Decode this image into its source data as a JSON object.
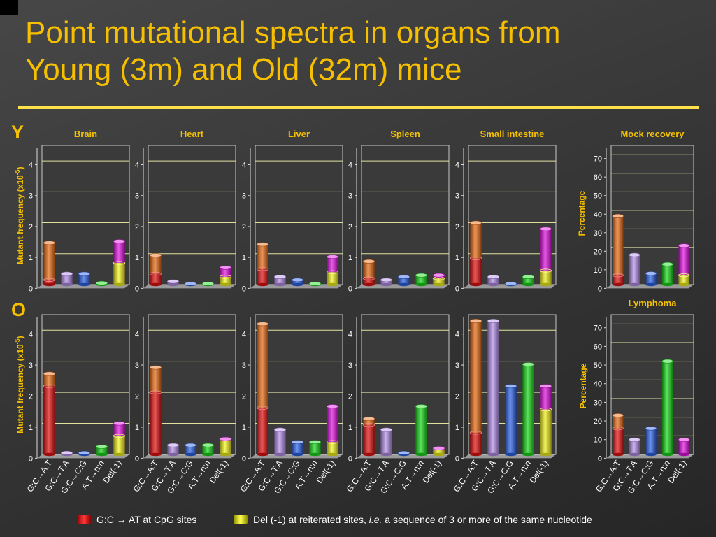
{
  "title_line1": "Point mutational spectra in organs from",
  "title_line2": "Young (3m) and Old (32m) mice",
  "row_labels": [
    "Y",
    "O"
  ],
  "left_axis_label_prefix": "Mutant frequency (x10",
  "left_axis_label_exp": "-5",
  "left_axis_label_suffix": ")",
  "right_axis_label": "Percentage",
  "categories": [
    "G:C→A:T",
    "G:C→T:A",
    "G:C→C:G",
    "A:T→n:n",
    "Del(-1)"
  ],
  "colors": {
    "gc_at": "#e86a12",
    "gc_ta": "#b48ee8",
    "gc_cg": "#2d62e8",
    "at_nn": "#18d818",
    "del1": "#e010e0",
    "cpg": "#e51010",
    "reit": "#f2f21a",
    "title": "#f6c000",
    "organ_title": "#f2c000"
  },
  "legend": {
    "cpg_label": "G:C → AT at CpG sites",
    "reit_label_pre": "Del (-1) at reiterated sites, ",
    "reit_label_em": "i.e.",
    "reit_label_post": " a sequence of 3 or more of the same nucleotide"
  },
  "chart_data": [
    {
      "type": "bar",
      "row": "Y",
      "title": "Brain",
      "ylabel": "Mutant frequency (x10-5)",
      "ylim": [
        0,
        4.5
      ],
      "yticks": [
        0,
        1,
        2,
        3,
        4
      ],
      "categories": [
        "G:C→A:T",
        "G:C→T:A",
        "G:C→C:G",
        "A:T→n:n",
        "Del(-1)"
      ],
      "values": [
        1.35,
        0.35,
        0.35,
        0.05,
        1.4
      ],
      "subset": {
        "G:C→A:T": 0.15,
        "Del(-1)": 0.7
      }
    },
    {
      "type": "bar",
      "row": "Y",
      "title": "Heart",
      "ylim": [
        0,
        4.5
      ],
      "yticks": [
        0,
        1,
        2,
        3,
        4
      ],
      "categories": [
        "G:C→A:T",
        "G:C→T:A",
        "G:C→C:G",
        "A:T→n:n",
        "Del(-1)"
      ],
      "values": [
        0.95,
        0.1,
        0.03,
        0.03,
        0.55
      ],
      "subset": {
        "G:C→A:T": 0.35,
        "Del(-1)": 0.25
      }
    },
    {
      "type": "bar",
      "row": "Y",
      "title": "Liver",
      "ylim": [
        0,
        4.5
      ],
      "yticks": [
        0,
        1,
        2,
        3,
        4
      ],
      "categories": [
        "G:C→A:T",
        "G:C→T:A",
        "G:C→C:G",
        "A:T→n:n",
        "Del(-1)"
      ],
      "values": [
        1.3,
        0.25,
        0.15,
        0.03,
        0.9
      ],
      "subset": {
        "G:C→A:T": 0.5,
        "Del(-1)": 0.4
      }
    },
    {
      "type": "bar",
      "row": "Y",
      "title": "Spleen",
      "ylim": [
        0,
        4.5
      ],
      "yticks": [
        0,
        1,
        2,
        3,
        4
      ],
      "categories": [
        "G:C→A:T",
        "G:C→T:A",
        "G:C→C:G",
        "A:T→n:n",
        "Del(-1)"
      ],
      "values": [
        0.75,
        0.15,
        0.25,
        0.3,
        0.3
      ],
      "subset": {
        "G:C→A:T": 0.2,
        "Del(-1)": 0.2
      }
    },
    {
      "type": "bar",
      "row": "Y",
      "title": "Small intestine",
      "ylim": [
        0,
        4.5
      ],
      "yticks": [
        0,
        1,
        2,
        3,
        4
      ],
      "categories": [
        "G:C→A:T",
        "G:C→T:A",
        "G:C→C:G",
        "A:T→n:n",
        "Del(-1)"
      ],
      "values": [
        2.0,
        0.25,
        0.03,
        0.25,
        1.8
      ],
      "subset": {
        "G:C→A:T": 0.85,
        "Del(-1)": 0.45
      }
    },
    {
      "type": "bar",
      "row": "Y",
      "title": "Mock recovery",
      "ylabel": "Percentage",
      "ylim": [
        0,
        75
      ],
      "yticks": [
        0,
        10,
        20,
        30,
        40,
        50,
        60,
        70
      ],
      "categories": [
        "G:C→A:T",
        "G:C→T:A",
        "G:C→C:G",
        "A:T→n:n",
        "Del(-1)"
      ],
      "values": [
        37,
        16,
        6,
        11,
        21
      ],
      "subset": {
        "G:C→A:T": 5,
        "Del(-1)": 5
      }
    },
    {
      "type": "bar",
      "row": "O",
      "title": "",
      "ylabel": "Mutant frequency (x10-5)",
      "ylim": [
        0,
        4.5
      ],
      "yticks": [
        0,
        1,
        2,
        3,
        4
      ],
      "categories": [
        "G:C→A:T",
        "G:C→T:A",
        "G:C→C:G",
        "A:T→n:n",
        "Del(-1)"
      ],
      "values": [
        2.6,
        0.05,
        0.05,
        0.25,
        1.0
      ],
      "subset": {
        "G:C→A:T": 2.2,
        "Del(-1)": 0.6
      }
    },
    {
      "type": "bar",
      "row": "O",
      "title": "",
      "ylim": [
        0,
        4.5
      ],
      "yticks": [
        0,
        1,
        2,
        3,
        4
      ],
      "categories": [
        "G:C→A:T",
        "G:C→T:A",
        "G:C→C:G",
        "A:T→n:n",
        "Del(-1)"
      ],
      "values": [
        2.8,
        0.3,
        0.3,
        0.3,
        0.5
      ],
      "subset": {
        "G:C→A:T": 2.0,
        "Del(-1)": 0.5
      }
    },
    {
      "type": "bar",
      "row": "O",
      "title": "",
      "ylim": [
        0,
        4.5
      ],
      "yticks": [
        0,
        1,
        2,
        3,
        4
      ],
      "categories": [
        "G:C→A:T",
        "G:C→T:A",
        "G:C→C:G",
        "A:T→n:n",
        "Del(-1)"
      ],
      "values": [
        4.2,
        0.8,
        0.4,
        0.4,
        1.55
      ],
      "subset": {
        "G:C→A:T": 1.5,
        "Del(-1)": 0.4
      }
    },
    {
      "type": "bar",
      "row": "O",
      "title": "",
      "ylim": [
        0,
        4.5
      ],
      "yticks": [
        0,
        1,
        2,
        3,
        4
      ],
      "categories": [
        "G:C→A:T",
        "G:C→T:A",
        "G:C→C:G",
        "A:T→n:n",
        "Del(-1)"
      ],
      "values": [
        1.15,
        0.8,
        0.05,
        1.55,
        0.2
      ],
      "subset": {
        "G:C→A:T": 0.95,
        "Del(-1)": 0.2
      }
    },
    {
      "type": "bar",
      "row": "O",
      "title": "",
      "ylim": [
        0,
        4.5
      ],
      "yticks": [
        0,
        1,
        2,
        3,
        4
      ],
      "categories": [
        "G:C→A:T",
        "G:C→T:A",
        "G:C→C:G",
        "A:T→n:n",
        "Del(-1)"
      ],
      "values": [
        4.3,
        4.3,
        2.2,
        2.9,
        2.2
      ],
      "subset": {
        "G:C→A:T": 0.7,
        "Del(-1)": 1.45
      }
    },
    {
      "type": "bar",
      "row": "O",
      "title": "Lymphoma",
      "ylabel": "Percentage",
      "ylim": [
        0,
        75
      ],
      "yticks": [
        0,
        10,
        20,
        30,
        40,
        50,
        60,
        70
      ],
      "categories": [
        "G:C→A:T",
        "G:C→T:A",
        "G:C→C:G",
        "A:T→n:n",
        "Del(-1)"
      ],
      "values": [
        21,
        8,
        14,
        50,
        8
      ],
      "subset": {
        "G:C→A:T": 14,
        "Del(-1)": 0
      }
    }
  ]
}
